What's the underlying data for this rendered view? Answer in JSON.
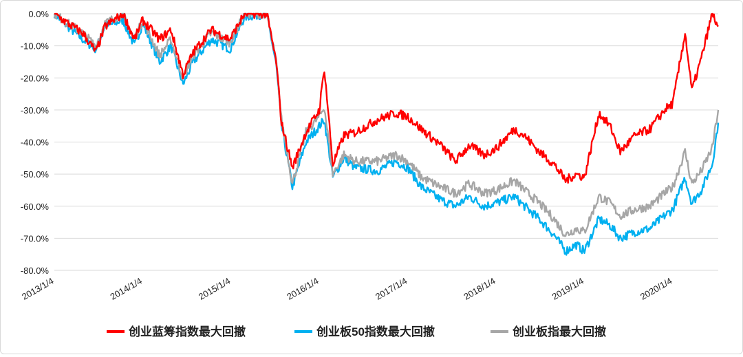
{
  "chart_data": {
    "type": "line",
    "title": "",
    "xlabel": "",
    "ylabel": "",
    "x_range": [
      "2013/1/4",
      "2020/7/10"
    ],
    "ylim": [
      -0.8,
      0.0
    ],
    "y_ticks": [
      "0.0%",
      "-10.0%",
      "-20.0%",
      "-30.0%",
      "-40.0%",
      "-50.0%",
      "-60.0%",
      "-70.0%",
      "-80.0%"
    ],
    "x_ticks": [
      "2013/1/4",
      "2014/1/4",
      "2015/1/4",
      "2016/1/4",
      "2017/1/4",
      "2018/1/4",
      "2019/1/4",
      "2020/1/4"
    ],
    "grid": "horizontal",
    "legend_position": "bottom",
    "series": [
      {
        "name": "创业蓝筹指数最大回撤",
        "color": "#ff0000",
        "points": [
          [
            "2013/1/4",
            0.0
          ],
          [
            "2013/3/1",
            -0.03
          ],
          [
            "2013/5/1",
            -0.06
          ],
          [
            "2013/6/25",
            -0.12
          ],
          [
            "2013/8/1",
            -0.04
          ],
          [
            "2013/10/15",
            0.0
          ],
          [
            "2013/12/1",
            -0.08
          ],
          [
            "2014/1/4",
            -0.02
          ],
          [
            "2014/3/15",
            -0.08
          ],
          [
            "2014/5/1",
            -0.05
          ],
          [
            "2014/6/20",
            -0.19
          ],
          [
            "2014/8/1",
            -0.12
          ],
          [
            "2014/10/15",
            -0.05
          ],
          [
            "2014/12/31",
            -0.08
          ],
          [
            "2015/3/1",
            0.0
          ],
          [
            "2015/6/1",
            0.0
          ],
          [
            "2015/7/10",
            -0.15
          ],
          [
            "2015/8/1",
            -0.34
          ],
          [
            "2015/9/15",
            -0.48
          ],
          [
            "2015/11/10",
            -0.37
          ],
          [
            "2016/1/4",
            -0.3
          ],
          [
            "2016/1/25",
            -0.17
          ],
          [
            "2016/2/29",
            -0.47
          ],
          [
            "2016/4/15",
            -0.38
          ],
          [
            "2016/6/1",
            -0.37
          ],
          [
            "2016/9/1",
            -0.33
          ],
          [
            "2016/11/15",
            -0.31
          ],
          [
            "2017/1/4",
            -0.32
          ],
          [
            "2017/3/1",
            -0.36
          ],
          [
            "2017/5/20",
            -0.41
          ],
          [
            "2017/7/20",
            -0.46
          ],
          [
            "2017/9/15",
            -0.41
          ],
          [
            "2017/11/15",
            -0.44
          ],
          [
            "2018/1/4",
            -0.42
          ],
          [
            "2018/3/20",
            -0.36
          ],
          [
            "2018/5/1",
            -0.38
          ],
          [
            "2018/7/1",
            -0.43
          ],
          [
            "2018/9/1",
            -0.47
          ],
          [
            "2018/10/18",
            -0.52
          ],
          [
            "2018/12/1",
            -0.5
          ],
          [
            "2019/1/4",
            -0.51
          ],
          [
            "2019/3/5",
            -0.31
          ],
          [
            "2019/4/20",
            -0.35
          ],
          [
            "2019/6/1",
            -0.43
          ],
          [
            "2019/8/1",
            -0.38
          ],
          [
            "2019/10/1",
            -0.36
          ],
          [
            "2019/12/1",
            -0.3
          ],
          [
            "2020/1/4",
            -0.28
          ],
          [
            "2020/2/24",
            -0.06
          ],
          [
            "2020/3/23",
            -0.24
          ],
          [
            "2020/5/1",
            -0.14
          ],
          [
            "2020/6/15",
            0.0
          ],
          [
            "2020/7/10",
            -0.04
          ]
        ]
      },
      {
        "name": "创业板50指数最大回撤",
        "color": "#00b0f0",
        "points": [
          [
            "2013/1/4",
            0.0
          ],
          [
            "2013/3/1",
            -0.04
          ],
          [
            "2013/5/1",
            -0.08
          ],
          [
            "2013/6/25",
            -0.11
          ],
          [
            "2013/8/1",
            -0.04
          ],
          [
            "2013/10/15",
            -0.02
          ],
          [
            "2013/12/1",
            -0.1
          ],
          [
            "2014/1/4",
            -0.03
          ],
          [
            "2014/3/15",
            -0.15
          ],
          [
            "2014/5/1",
            -0.1
          ],
          [
            "2014/6/20",
            -0.22
          ],
          [
            "2014/8/1",
            -0.15
          ],
          [
            "2014/10/15",
            -0.08
          ],
          [
            "2014/12/31",
            -0.11
          ],
          [
            "2015/3/1",
            -0.01
          ],
          [
            "2015/6/1",
            0.0
          ],
          [
            "2015/7/10",
            -0.16
          ],
          [
            "2015/8/1",
            -0.35
          ],
          [
            "2015/9/15",
            -0.54
          ],
          [
            "2015/11/10",
            -0.4
          ],
          [
            "2016/1/4",
            -0.35
          ],
          [
            "2016/1/25",
            -0.33
          ],
          [
            "2016/2/29",
            -0.51
          ],
          [
            "2016/4/15",
            -0.45
          ],
          [
            "2016/6/1",
            -0.48
          ],
          [
            "2016/9/1",
            -0.49
          ],
          [
            "2016/11/15",
            -0.46
          ],
          [
            "2017/1/4",
            -0.48
          ],
          [
            "2017/3/1",
            -0.54
          ],
          [
            "2017/5/20",
            -0.58
          ],
          [
            "2017/7/20",
            -0.6
          ],
          [
            "2017/9/15",
            -0.57
          ],
          [
            "2017/11/15",
            -0.6
          ],
          [
            "2018/1/4",
            -0.59
          ],
          [
            "2018/3/20",
            -0.57
          ],
          [
            "2018/5/1",
            -0.6
          ],
          [
            "2018/7/1",
            -0.64
          ],
          [
            "2018/9/1",
            -0.69
          ],
          [
            "2018/10/18",
            -0.74
          ],
          [
            "2018/12/1",
            -0.72
          ],
          [
            "2019/1/4",
            -0.74
          ],
          [
            "2019/3/5",
            -0.64
          ],
          [
            "2019/4/20",
            -0.66
          ],
          [
            "2019/6/1",
            -0.7
          ],
          [
            "2019/8/1",
            -0.68
          ],
          [
            "2019/10/1",
            -0.67
          ],
          [
            "2019/12/1",
            -0.63
          ],
          [
            "2020/1/4",
            -0.61
          ],
          [
            "2020/2/24",
            -0.51
          ],
          [
            "2020/3/23",
            -0.59
          ],
          [
            "2020/5/1",
            -0.55
          ],
          [
            "2020/6/15",
            -0.47
          ],
          [
            "2020/7/10",
            -0.34
          ]
        ]
      },
      {
        "name": "创业板指最大回撤",
        "color": "#a6a6a6",
        "points": [
          [
            "2013/1/4",
            0.0
          ],
          [
            "2013/3/1",
            -0.03
          ],
          [
            "2013/5/1",
            -0.06
          ],
          [
            "2013/6/25",
            -0.1
          ],
          [
            "2013/8/1",
            -0.03
          ],
          [
            "2013/10/15",
            0.0
          ],
          [
            "2013/12/1",
            -0.08
          ],
          [
            "2014/1/4",
            -0.02
          ],
          [
            "2014/3/15",
            -0.13
          ],
          [
            "2014/5/1",
            -0.08
          ],
          [
            "2014/6/20",
            -0.2
          ],
          [
            "2014/8/1",
            -0.13
          ],
          [
            "2014/10/15",
            -0.06
          ],
          [
            "2014/12/31",
            -0.09
          ],
          [
            "2015/3/1",
            0.0
          ],
          [
            "2015/6/1",
            0.0
          ],
          [
            "2015/7/10",
            -0.15
          ],
          [
            "2015/8/1",
            -0.33
          ],
          [
            "2015/9/15",
            -0.53
          ],
          [
            "2015/11/10",
            -0.37
          ],
          [
            "2016/1/4",
            -0.32
          ],
          [
            "2016/1/25",
            -0.29
          ],
          [
            "2016/2/29",
            -0.5
          ],
          [
            "2016/4/15",
            -0.44
          ],
          [
            "2016/6/1",
            -0.46
          ],
          [
            "2016/9/1",
            -0.46
          ],
          [
            "2016/11/15",
            -0.44
          ],
          [
            "2017/1/4",
            -0.46
          ],
          [
            "2017/3/1",
            -0.51
          ],
          [
            "2017/5/20",
            -0.54
          ],
          [
            "2017/7/20",
            -0.56
          ],
          [
            "2017/9/15",
            -0.53
          ],
          [
            "2017/11/15",
            -0.56
          ],
          [
            "2018/1/4",
            -0.55
          ],
          [
            "2018/3/20",
            -0.52
          ],
          [
            "2018/5/1",
            -0.55
          ],
          [
            "2018/7/1",
            -0.59
          ],
          [
            "2018/9/1",
            -0.64
          ],
          [
            "2018/10/18",
            -0.69
          ],
          [
            "2018/12/1",
            -0.67
          ],
          [
            "2019/1/4",
            -0.68
          ],
          [
            "2019/3/5",
            -0.57
          ],
          [
            "2019/4/20",
            -0.59
          ],
          [
            "2019/6/1",
            -0.63
          ],
          [
            "2019/8/1",
            -0.61
          ],
          [
            "2019/10/1",
            -0.6
          ],
          [
            "2019/12/1",
            -0.56
          ],
          [
            "2020/1/4",
            -0.54
          ],
          [
            "2020/2/24",
            -0.43
          ],
          [
            "2020/3/23",
            -0.53
          ],
          [
            "2020/5/1",
            -0.49
          ],
          [
            "2020/6/15",
            -0.42
          ],
          [
            "2020/7/10",
            -0.3
          ]
        ]
      }
    ]
  }
}
